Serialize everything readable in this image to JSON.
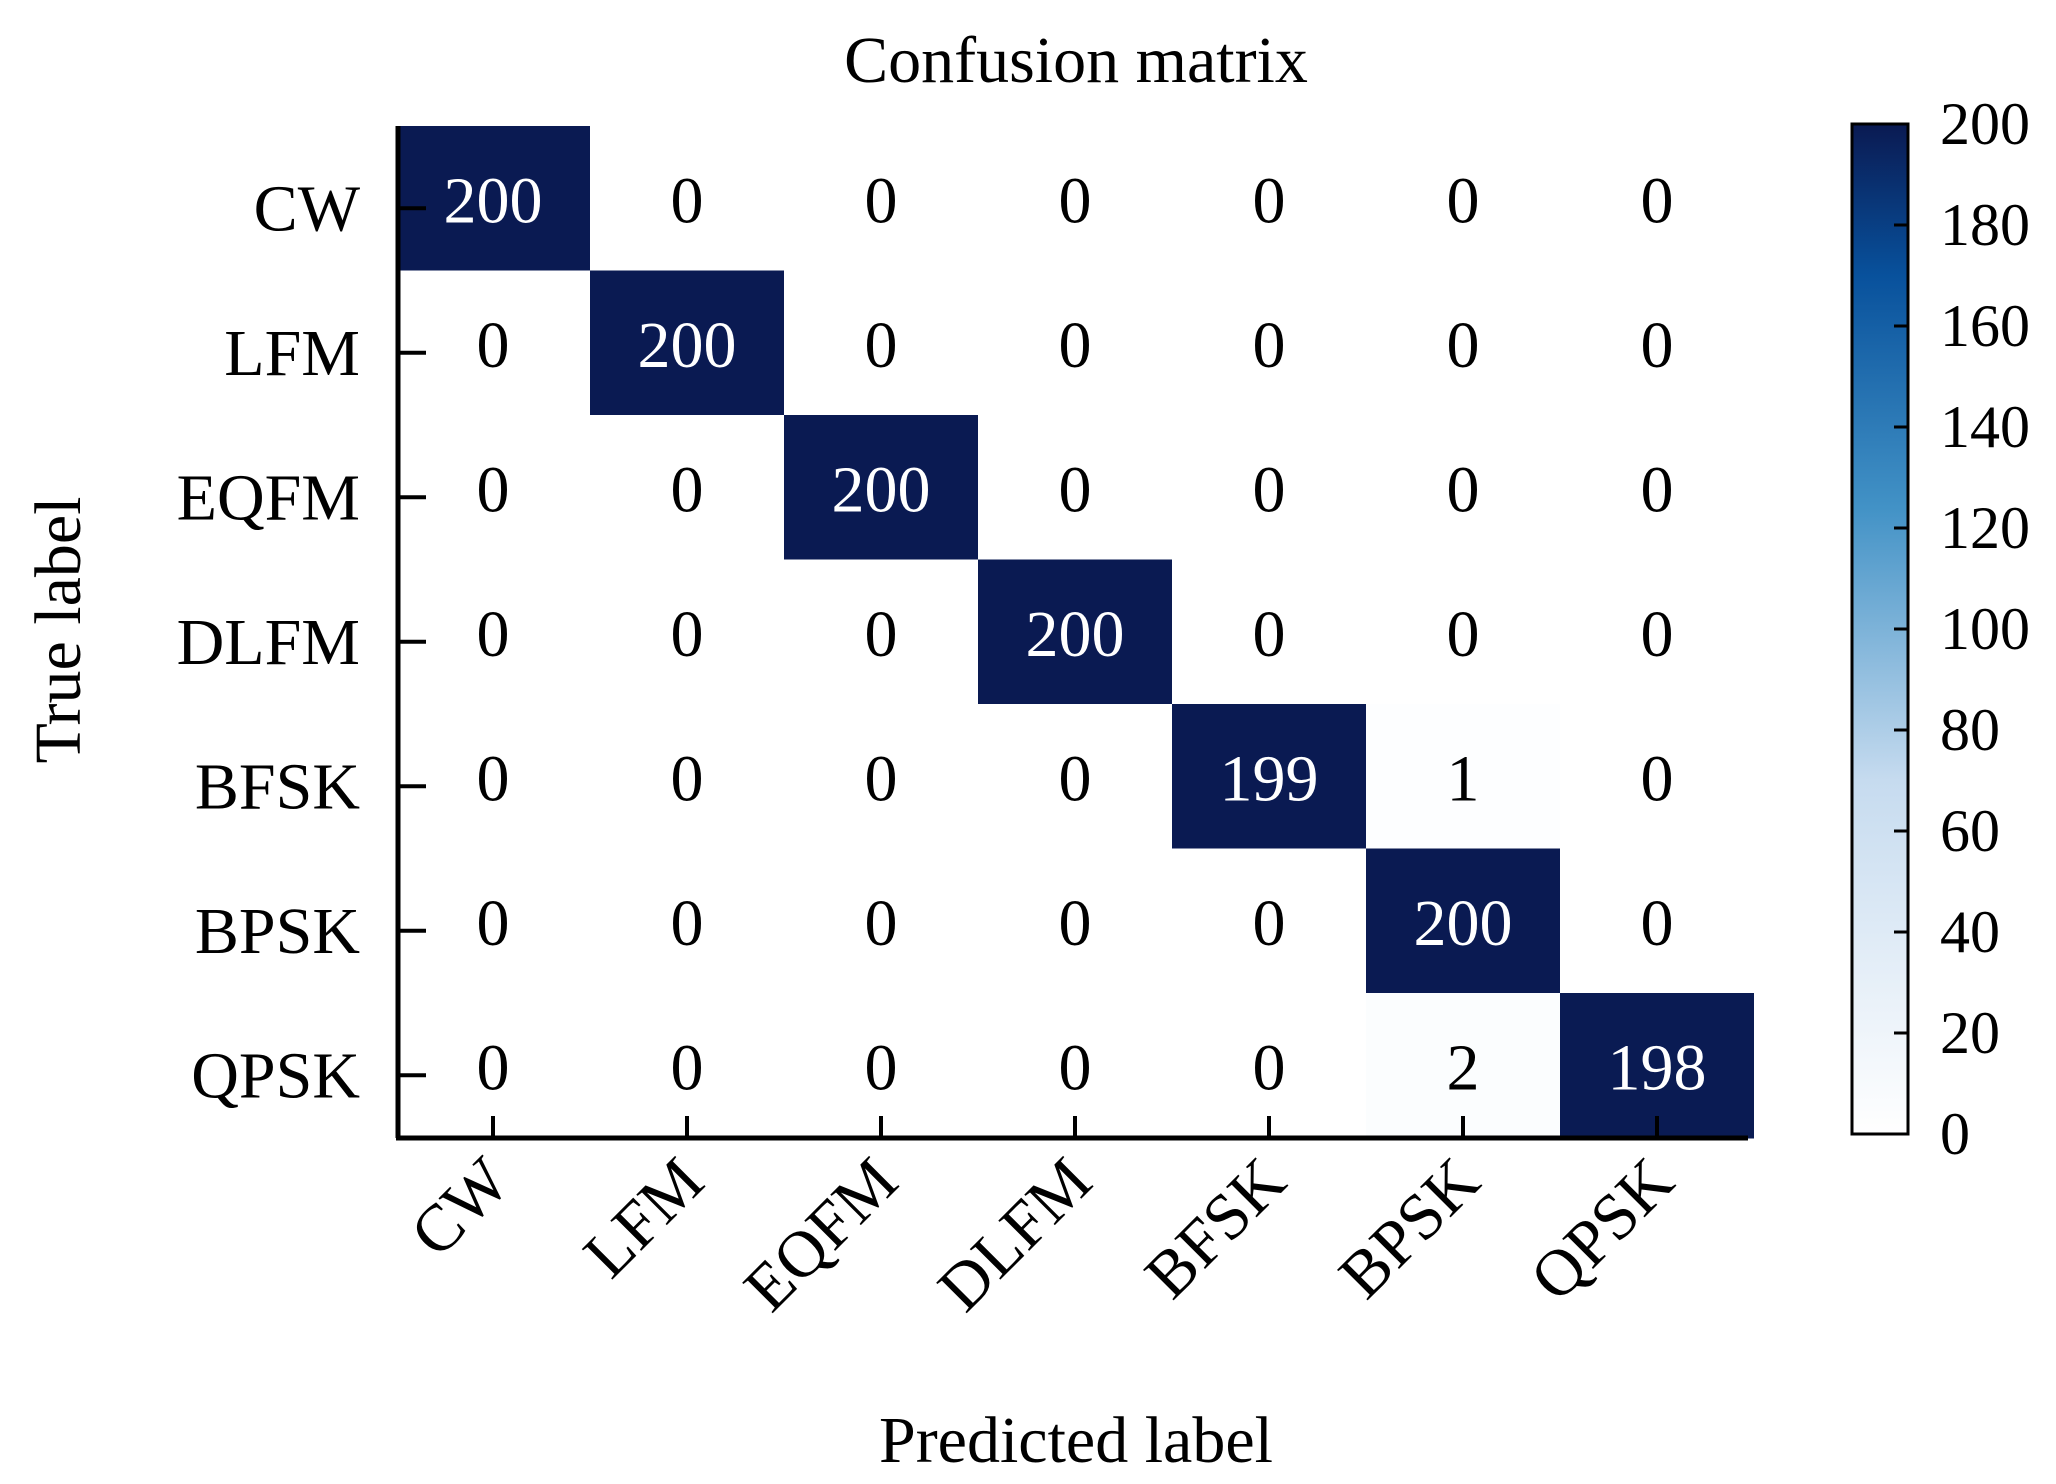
{
  "chart_data": {
    "type": "heatmap",
    "title": "Confusion matrix",
    "xlabel": "Predicted label",
    "ylabel": "True label",
    "x_categories": [
      "CW",
      "LFM",
      "EQFM",
      "DLFM",
      "BFSK",
      "BPSK",
      "QPSK"
    ],
    "y_categories": [
      "CW",
      "LFM",
      "EQFM",
      "DLFM",
      "BFSK",
      "BPSK",
      "QPSK"
    ],
    "values": [
      [
        200,
        0,
        0,
        0,
        0,
        0,
        0
      ],
      [
        0,
        200,
        0,
        0,
        0,
        0,
        0
      ],
      [
        0,
        0,
        200,
        0,
        0,
        0,
        0
      ],
      [
        0,
        0,
        0,
        200,
        0,
        0,
        0
      ],
      [
        0,
        0,
        0,
        0,
        199,
        1,
        0
      ],
      [
        0,
        0,
        0,
        0,
        0,
        200,
        0
      ],
      [
        0,
        0,
        0,
        0,
        0,
        2,
        198
      ]
    ],
    "colorbar": {
      "min": 0,
      "max": 200,
      "ticks": [
        "0",
        "20",
        "40",
        "60",
        "80",
        "100",
        "120",
        "140",
        "160",
        "180",
        "200"
      ],
      "colors": [
        "#ffffff",
        "#6fb3df",
        "#08306b",
        "#0a1a52"
      ]
    },
    "dark_text_color": "#000000",
    "light_text_color": "#ffffff"
  }
}
